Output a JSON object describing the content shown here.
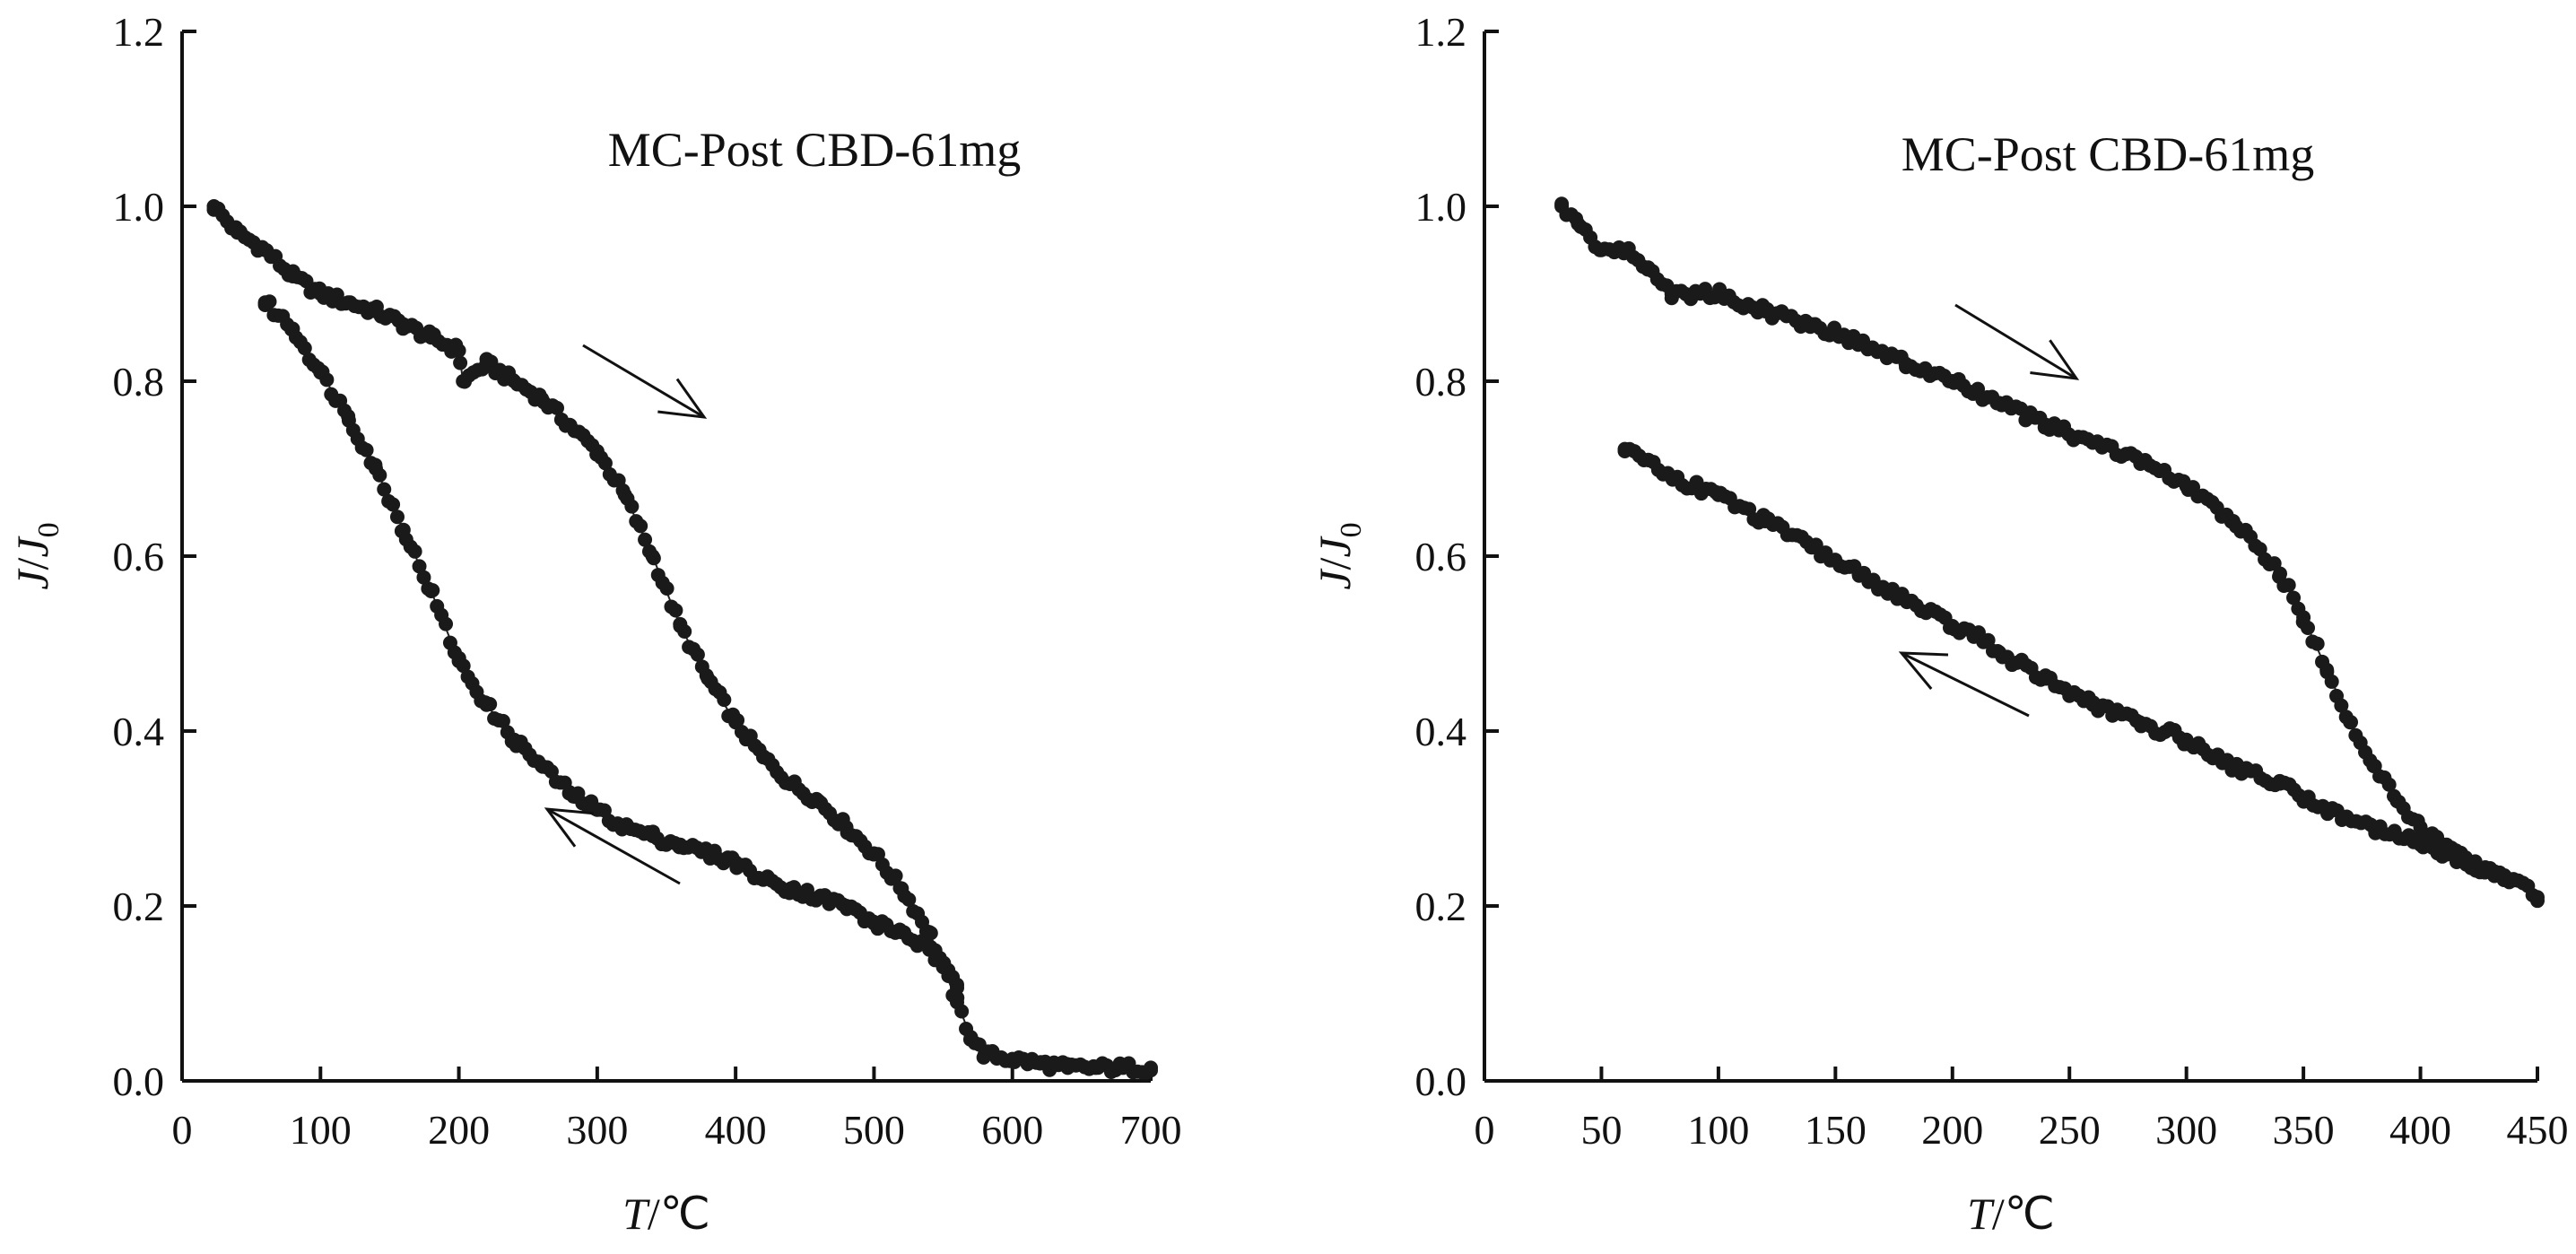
{
  "chart_data": [
    {
      "type": "scatter",
      "annotation": "MC-Post CBD-61mg",
      "xlabel": {
        "var": "T",
        "unit": "/℃"
      },
      "ylabel": {
        "var": "J",
        "sep": "/",
        "sub_var": "J",
        "sub": "0"
      },
      "xlim": [
        0,
        700
      ],
      "ylim": [
        0.0,
        1.2
      ],
      "x_ticks": [
        "0",
        "100",
        "200",
        "300",
        "400",
        "500",
        "600",
        "700"
      ],
      "y_ticks": [
        "0.0",
        "0.2",
        "0.4",
        "0.6",
        "0.8",
        "1.0",
        "1.2"
      ],
      "grid": false,
      "series": [
        {
          "direction": "heating",
          "x": [
            23,
            40,
            60,
            80,
            100,
            120,
            140,
            160,
            180,
            200,
            203,
            220,
            240,
            260,
            280,
            300,
            320,
            340,
            360,
            380,
            400,
            420,
            440,
            460,
            480,
            500,
            520,
            540,
            550,
            560,
            570,
            580,
            600,
            620,
            640,
            660,
            680,
            700
          ],
          "y": [
            1.0,
            0.97,
            0.95,
            0.92,
            0.9,
            0.89,
            0.88,
            0.865,
            0.85,
            0.835,
            0.8,
            0.82,
            0.8,
            0.78,
            0.75,
            0.72,
            0.67,
            0.6,
            0.52,
            0.46,
            0.41,
            0.37,
            0.34,
            0.32,
            0.29,
            0.26,
            0.22,
            0.17,
            0.13,
            0.09,
            0.05,
            0.03,
            0.025,
            0.02,
            0.015,
            0.015,
            0.015,
            0.015
          ]
        },
        {
          "direction": "cooling",
          "x": [
            560,
            540,
            520,
            500,
            480,
            460,
            440,
            420,
            400,
            380,
            360,
            340,
            320,
            300,
            280,
            260,
            240,
            220,
            200,
            180,
            160,
            140,
            120,
            100,
            80,
            60
          ],
          "y": [
            0.11,
            0.15,
            0.17,
            0.18,
            0.2,
            0.21,
            0.22,
            0.23,
            0.25,
            0.26,
            0.27,
            0.28,
            0.29,
            0.31,
            0.33,
            0.36,
            0.39,
            0.43,
            0.48,
            0.56,
            0.63,
            0.7,
            0.76,
            0.81,
            0.86,
            0.89
          ]
        }
      ]
    },
    {
      "type": "scatter",
      "annotation": "MC-Post CBD-61mg",
      "xlabel": {
        "var": "T",
        "unit": "/℃"
      },
      "ylabel": {
        "var": "J",
        "sep": "/",
        "sub_var": "J",
        "sub": "0"
      },
      "xlim": [
        0,
        450
      ],
      "ylim": [
        0.0,
        1.2
      ],
      "x_ticks": [
        "0",
        "50",
        "100",
        "150",
        "200",
        "250",
        "300",
        "350",
        "400",
        "450"
      ],
      "y_ticks": [
        "0.0",
        "0.2",
        "0.4",
        "0.6",
        "0.8",
        "1.0",
        "1.2"
      ],
      "grid": false,
      "series": [
        {
          "direction": "heating",
          "x": [
            33,
            40,
            50,
            60,
            70,
            80,
            90,
            100,
            120,
            140,
            160,
            180,
            200,
            220,
            240,
            260,
            280,
            300,
            320,
            340,
            350,
            360,
            370,
            380,
            390,
            400,
            410,
            420,
            430,
            440,
            450
          ],
          "y": [
            1.0,
            0.98,
            0.95,
            0.95,
            0.93,
            0.9,
            0.9,
            0.9,
            0.88,
            0.865,
            0.845,
            0.82,
            0.8,
            0.775,
            0.75,
            0.73,
            0.71,
            0.68,
            0.64,
            0.58,
            0.53,
            0.47,
            0.41,
            0.36,
            0.32,
            0.29,
            0.27,
            0.25,
            0.24,
            0.23,
            0.21
          ]
        },
        {
          "direction": "cooling",
          "x": [
            440,
            420,
            400,
            380,
            360,
            340,
            320,
            300,
            280,
            260,
            240,
            220,
            210,
            200,
            180,
            160,
            140,
            120,
            100,
            90,
            80,
            70,
            60
          ],
          "y": [
            0.23,
            0.25,
            0.27,
            0.29,
            0.31,
            0.34,
            0.36,
            0.39,
            0.41,
            0.43,
            0.46,
            0.49,
            0.51,
            0.52,
            0.55,
            0.58,
            0.61,
            0.64,
            0.67,
            0.68,
            0.69,
            0.71,
            0.72
          ]
        }
      ]
    }
  ]
}
